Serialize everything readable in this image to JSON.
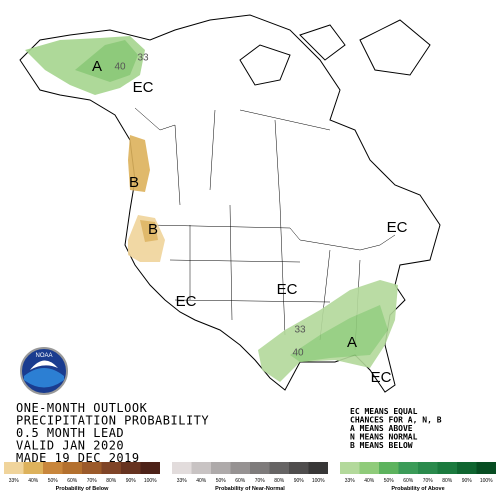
{
  "header": {
    "title_lines": [
      "ONE-MONTH OUTLOOK",
      "PRECIPITATION PROBABILITY",
      "0.5 MONTH LEAD",
      "VALID JAN 2020",
      "MADE 19 DEC 2019"
    ]
  },
  "logo": "NOAA",
  "map_labels": [
    "A",
    "40",
    "33",
    "EC",
    "B",
    "B",
    "EC",
    "EC",
    "EC",
    "33",
    "A",
    "40",
    "EC"
  ],
  "legend_notes": [
    "EC MEANS EQUAL",
    "CHANCES FOR A, N, B",
    "A MEANS ABOVE",
    "N MEANS NORMAL",
    "B MEANS BELOW"
  ],
  "scales": [
    {
      "title": "Probability of Below",
      "ticks": [
        "33%",
        "40%",
        "50%",
        "60%",
        "70%",
        "80%",
        "90%",
        "100%"
      ],
      "colors": [
        "#f0d49b",
        "#ddb25c",
        "#c8863c",
        "#b3702e",
        "#9b5a2a",
        "#7f4427",
        "#663320",
        "#4d2218"
      ]
    },
    {
      "title": "Probability of Near-Normal",
      "ticks": [
        "33%",
        "40%",
        "50%",
        "60%",
        "70%",
        "80%",
        "90%",
        "100%"
      ],
      "colors": [
        "#e2dcdc",
        "#c8c3c3",
        "#aeaaaa",
        "#969292",
        "#7e7b7b",
        "#666464",
        "#4f4d4d",
        "#383737"
      ]
    },
    {
      "title": "Probability of Above",
      "ticks": [
        "33%",
        "40%",
        "50%",
        "60%",
        "70%",
        "80%",
        "90%",
        "100%"
      ],
      "colors": [
        "#b3d99b",
        "#8fcb7a",
        "#5db35e",
        "#3b9b58",
        "#2a8a4c",
        "#1b7a3e",
        "#0f6530",
        "#074d22"
      ]
    }
  ]
}
